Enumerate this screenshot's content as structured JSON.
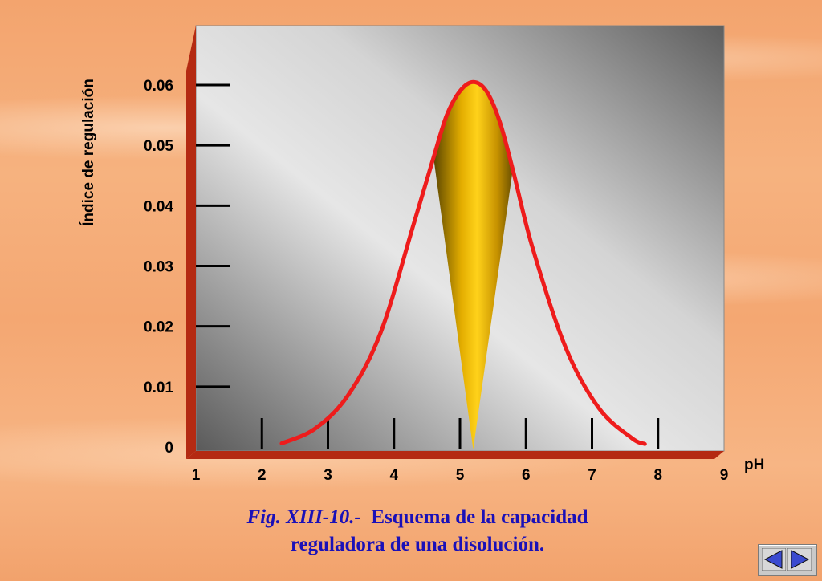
{
  "chart_data": {
    "type": "line",
    "xlabel": "pH",
    "ylabel": "Índice de regulación",
    "x_ticks": [
      1,
      2,
      3,
      4,
      5,
      6,
      7,
      8,
      9
    ],
    "y_ticks": [
      "0",
      "0.01",
      "0.02",
      "0.03",
      "0.04",
      "0.05",
      "0.06"
    ],
    "xlim": [
      1,
      9
    ],
    "ylim": [
      0,
      0.06
    ],
    "series": [
      {
        "color": "#ee1c1c",
        "x": [
          2.3,
          2.8,
          3.3,
          3.8,
          4.3,
          4.6,
          4.8,
          5.0,
          5.2,
          5.4,
          5.6,
          5.8,
          6.1,
          6.6,
          7.1,
          7.6,
          7.8
        ],
        "y": [
          0.0006,
          0.003,
          0.0085,
          0.019,
          0.037,
          0.048,
          0.055,
          0.059,
          0.0605,
          0.059,
          0.054,
          0.046,
          0.033,
          0.0165,
          0.0065,
          0.0015,
          0.0005
        ]
      }
    ],
    "highlight": {
      "color": "#f5c400",
      "x_range": [
        4.6,
        5.8
      ],
      "apex_x": 5.2
    },
    "grid": false,
    "legend": "none"
  },
  "caption": {
    "fig_label": "Fig. XIII-10.-",
    "text_line1": "Esquema de la capacidad",
    "text_line2": "reguladora de una disolución."
  },
  "nav": {
    "prev_icon": "triangle-left-icon",
    "next_icon": "triangle-right-icon",
    "color": "#3b4bd0"
  }
}
